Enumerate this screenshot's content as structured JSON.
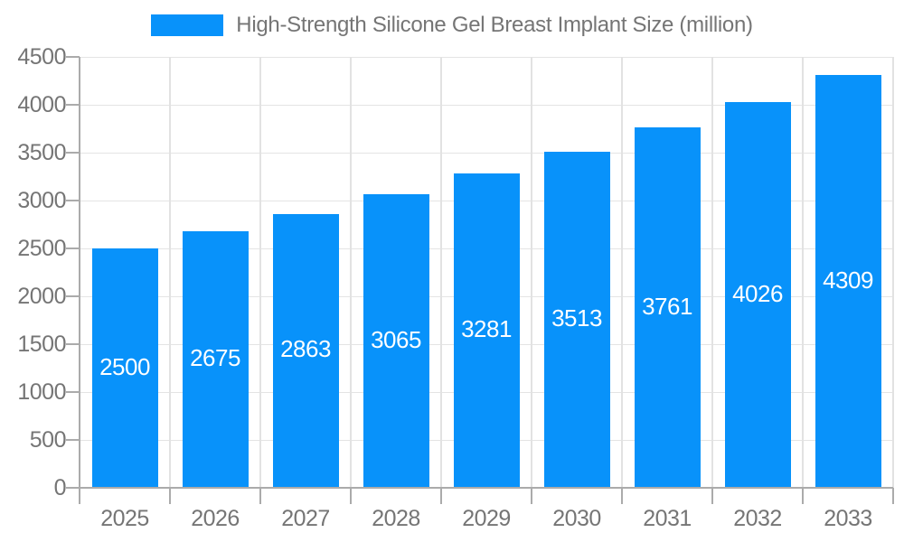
{
  "legend": {
    "label": "High-Strength Silicone Gel Breast Implant Size (million)",
    "swatch_color": "#0892fa"
  },
  "chart_data": {
    "type": "bar",
    "title": "High-Strength Silicone Gel Breast Implant Size (million)",
    "categories": [
      "2025",
      "2026",
      "2027",
      "2028",
      "2029",
      "2030",
      "2031",
      "2032",
      "2033"
    ],
    "values": [
      2500,
      2675,
      2863,
      3065,
      3281,
      3513,
      3761,
      4026,
      4309
    ],
    "value_labels": [
      "2500",
      "2675",
      "2863",
      "3065",
      "3281",
      "3513",
      "3761",
      "4026",
      "4309"
    ],
    "xlabel": "",
    "ylabel": "",
    "ylim": [
      0,
      4500
    ],
    "ytick_step": 500,
    "ytick_labels": [
      "0",
      "500",
      "1000",
      "1500",
      "2000",
      "2500",
      "3000",
      "3500",
      "4000",
      "4500"
    ],
    "grid": true,
    "legend_position": "top",
    "value_label_position": "inside-center"
  },
  "colors": {
    "bar": "#0892fa",
    "value_label": "#ffffff",
    "grid_h": "#e4e4e4",
    "grid_v": "#e2e2e2",
    "axis": "#ababab",
    "text": "#757575",
    "background": "#ffffff"
  }
}
